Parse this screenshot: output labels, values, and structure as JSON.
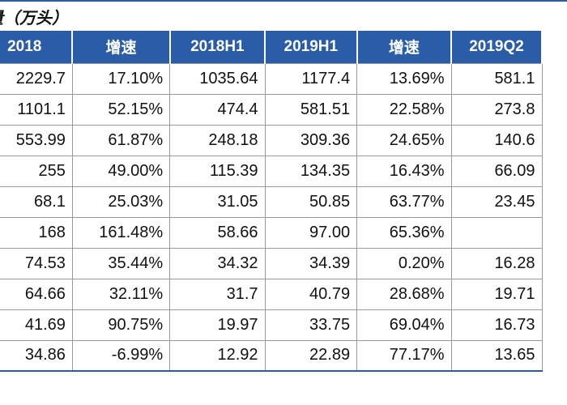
{
  "title": "量（万头）",
  "table": {
    "headers": [
      "2018",
      "增速",
      "2018H1",
      "2019H1",
      "增速",
      "2019Q2"
    ],
    "rows": [
      [
        "2229.7",
        "17.10%",
        "1035.64",
        "1177.4",
        "13.69%",
        "581.1"
      ],
      [
        "1101.1",
        "52.15%",
        "474.4",
        "581.51",
        "22.58%",
        "273.8"
      ],
      [
        "553.99",
        "61.87%",
        "248.18",
        "309.36",
        "24.65%",
        "140.6"
      ],
      [
        "255",
        "49.00%",
        "115.39",
        "134.35",
        "16.43%",
        "66.09"
      ],
      [
        "68.1",
        "25.03%",
        "31.05",
        "50.85",
        "63.77%",
        "23.45"
      ],
      [
        "168",
        "161.48%",
        "58.66",
        "97.00",
        "65.36%",
        ""
      ],
      [
        "74.53",
        "35.44%",
        "34.32",
        "34.39",
        "0.20%",
        "16.28"
      ],
      [
        "64.66",
        "32.11%",
        "31.7",
        "40.79",
        "28.68%",
        "19.71"
      ],
      [
        "41.69",
        "90.75%",
        "19.97",
        "33.75",
        "69.04%",
        "16.73"
      ],
      [
        "34.86",
        "-6.99%",
        "12.92",
        "22.89",
        "77.17%",
        "13.65"
      ]
    ]
  }
}
